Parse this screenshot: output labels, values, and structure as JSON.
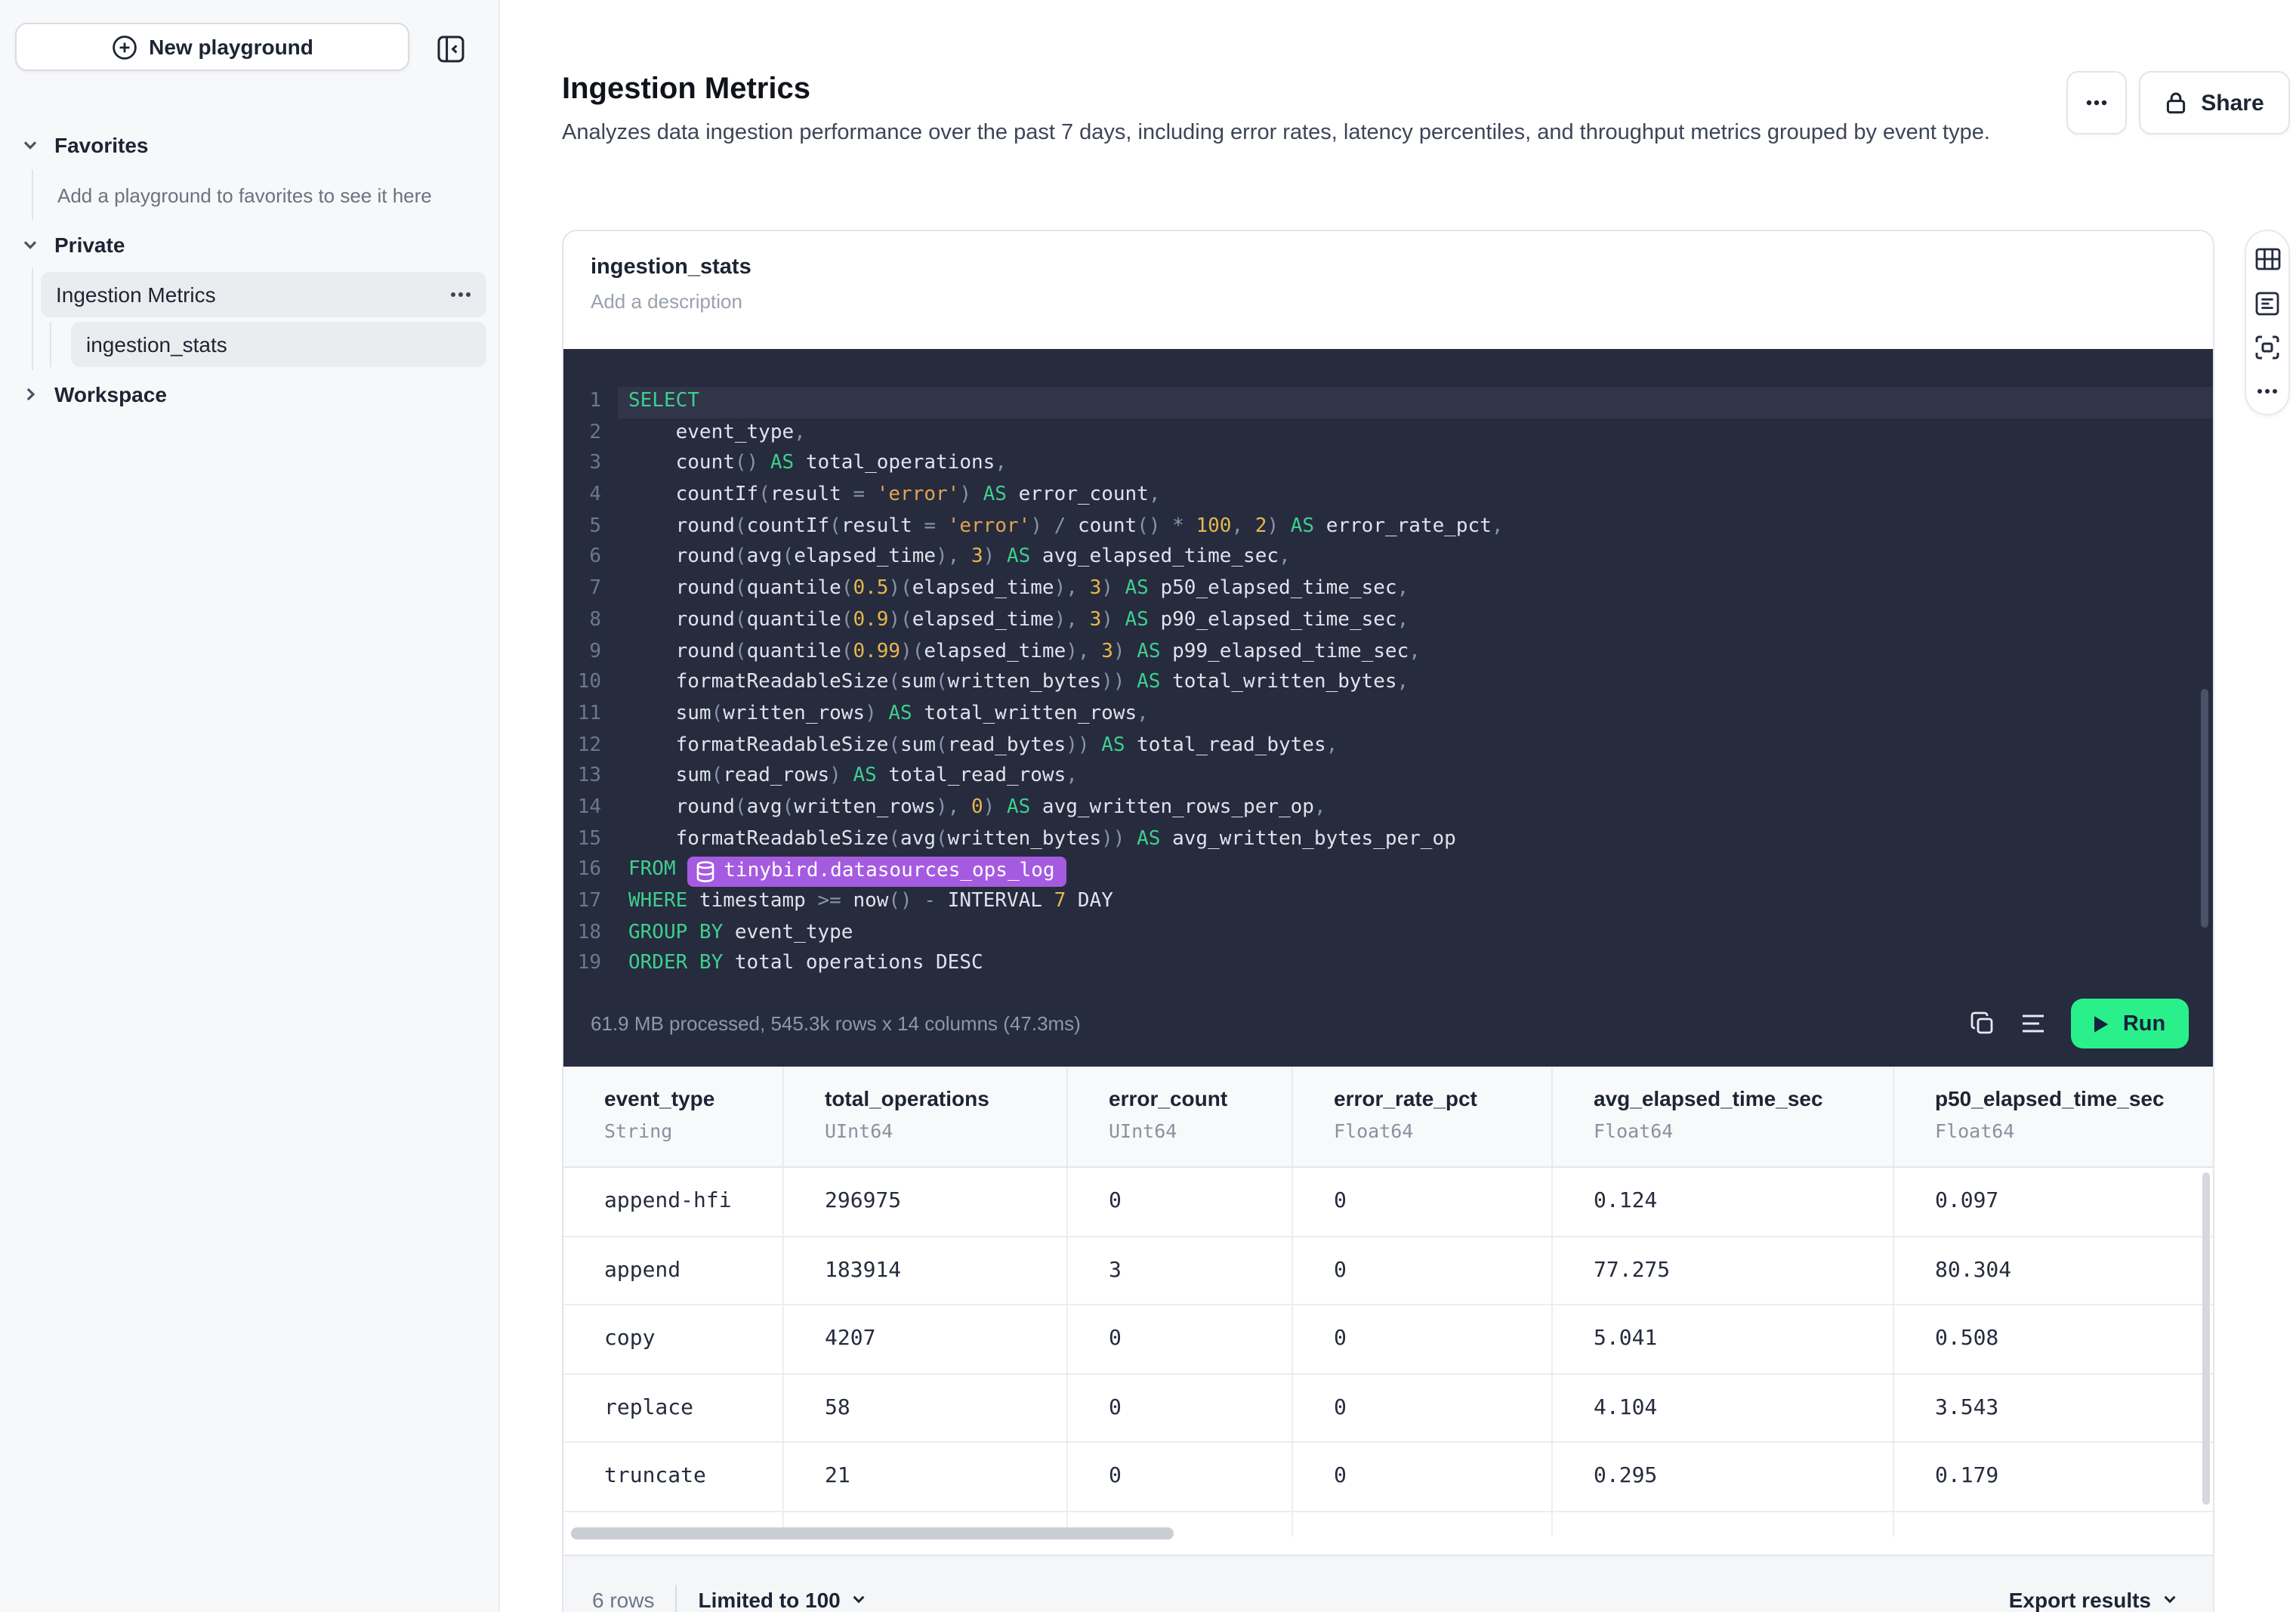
{
  "sidebar": {
    "new_playground": "New playground",
    "sections": {
      "favorites": {
        "label": "Favorites",
        "hint": "Add a playground to favorites to see it here"
      },
      "private": {
        "label": "Private",
        "items": [
          {
            "label": "Ingestion Metrics"
          },
          {
            "label": "ingestion_stats"
          }
        ]
      },
      "workspace": {
        "label": "Workspace"
      }
    }
  },
  "header": {
    "title": "Ingestion Metrics",
    "description": "Analyzes data ingestion performance over the past 7 days, including error rates, latency percentiles, and throughput metrics grouped by event type.",
    "share_label": "Share"
  },
  "panel": {
    "name": "ingestion_stats",
    "description_placeholder": "Add a description",
    "status": "61.9 MB processed, 545.3k rows x 14 columns (47.3ms)",
    "run_label": "Run",
    "table_ref": "tinybird.datasources_ops_log",
    "code_lines": [
      [
        [
          "kw",
          "SELECT"
        ]
      ],
      [
        [
          "id",
          "    event_type"
        ],
        [
          "p",
          ","
        ]
      ],
      [
        [
          "id",
          "    count"
        ],
        [
          "p",
          "() "
        ],
        [
          "kw",
          "AS"
        ],
        [
          "id",
          " total_operations"
        ],
        [
          "p",
          ","
        ]
      ],
      [
        [
          "id",
          "    countIf"
        ],
        [
          "p",
          "("
        ],
        [
          "id",
          "result "
        ],
        [
          "p",
          "= "
        ],
        [
          "str",
          "'error'"
        ],
        [
          "p",
          ") "
        ],
        [
          "kw",
          "AS"
        ],
        [
          "id",
          " error_count"
        ],
        [
          "p",
          ","
        ]
      ],
      [
        [
          "id",
          "    round"
        ],
        [
          "p",
          "("
        ],
        [
          "id",
          "countIf"
        ],
        [
          "p",
          "("
        ],
        [
          "id",
          "result "
        ],
        [
          "p",
          "= "
        ],
        [
          "str",
          "'error'"
        ],
        [
          "p",
          ") / "
        ],
        [
          "id",
          "count"
        ],
        [
          "p",
          "() * "
        ],
        [
          "num",
          "100"
        ],
        [
          "p",
          ", "
        ],
        [
          "num",
          "2"
        ],
        [
          "p",
          ") "
        ],
        [
          "kw",
          "AS"
        ],
        [
          "id",
          " error_rate_pct"
        ],
        [
          "p",
          ","
        ]
      ],
      [
        [
          "id",
          "    round"
        ],
        [
          "p",
          "("
        ],
        [
          "id",
          "avg"
        ],
        [
          "p",
          "("
        ],
        [
          "id",
          "elapsed_time"
        ],
        [
          "p",
          "), "
        ],
        [
          "num",
          "3"
        ],
        [
          "p",
          ") "
        ],
        [
          "kw",
          "AS"
        ],
        [
          "id",
          " avg_elapsed_time_sec"
        ],
        [
          "p",
          ","
        ]
      ],
      [
        [
          "id",
          "    round"
        ],
        [
          "p",
          "("
        ],
        [
          "id",
          "quantile"
        ],
        [
          "p",
          "("
        ],
        [
          "num",
          "0.5"
        ],
        [
          "p",
          ")("
        ],
        [
          "id",
          "elapsed_time"
        ],
        [
          "p",
          "), "
        ],
        [
          "num",
          "3"
        ],
        [
          "p",
          ") "
        ],
        [
          "kw",
          "AS"
        ],
        [
          "id",
          " p50_elapsed_time_sec"
        ],
        [
          "p",
          ","
        ]
      ],
      [
        [
          "id",
          "    round"
        ],
        [
          "p",
          "("
        ],
        [
          "id",
          "quantile"
        ],
        [
          "p",
          "("
        ],
        [
          "num",
          "0.9"
        ],
        [
          "p",
          ")("
        ],
        [
          "id",
          "elapsed_time"
        ],
        [
          "p",
          "), "
        ],
        [
          "num",
          "3"
        ],
        [
          "p",
          ") "
        ],
        [
          "kw",
          "AS"
        ],
        [
          "id",
          " p90_elapsed_time_sec"
        ],
        [
          "p",
          ","
        ]
      ],
      [
        [
          "id",
          "    round"
        ],
        [
          "p",
          "("
        ],
        [
          "id",
          "quantile"
        ],
        [
          "p",
          "("
        ],
        [
          "num",
          "0.99"
        ],
        [
          "p",
          ")("
        ],
        [
          "id",
          "elapsed_time"
        ],
        [
          "p",
          "), "
        ],
        [
          "num",
          "3"
        ],
        [
          "p",
          ") "
        ],
        [
          "kw",
          "AS"
        ],
        [
          "id",
          " p99_elapsed_time_sec"
        ],
        [
          "p",
          ","
        ]
      ],
      [
        [
          "id",
          "    formatReadableSize"
        ],
        [
          "p",
          "("
        ],
        [
          "id",
          "sum"
        ],
        [
          "p",
          "("
        ],
        [
          "id",
          "written_bytes"
        ],
        [
          "p",
          ")) "
        ],
        [
          "kw",
          "AS"
        ],
        [
          "id",
          " total_written_bytes"
        ],
        [
          "p",
          ","
        ]
      ],
      [
        [
          "id",
          "    sum"
        ],
        [
          "p",
          "("
        ],
        [
          "id",
          "written_rows"
        ],
        [
          "p",
          ") "
        ],
        [
          "kw",
          "AS"
        ],
        [
          "id",
          " total_written_rows"
        ],
        [
          "p",
          ","
        ]
      ],
      [
        [
          "id",
          "    formatReadableSize"
        ],
        [
          "p",
          "("
        ],
        [
          "id",
          "sum"
        ],
        [
          "p",
          "("
        ],
        [
          "id",
          "read_bytes"
        ],
        [
          "p",
          ")) "
        ],
        [
          "kw",
          "AS"
        ],
        [
          "id",
          " total_read_bytes"
        ],
        [
          "p",
          ","
        ]
      ],
      [
        [
          "id",
          "    sum"
        ],
        [
          "p",
          "("
        ],
        [
          "id",
          "read_rows"
        ],
        [
          "p",
          ") "
        ],
        [
          "kw",
          "AS"
        ],
        [
          "id",
          " total_read_rows"
        ],
        [
          "p",
          ","
        ]
      ],
      [
        [
          "id",
          "    round"
        ],
        [
          "p",
          "("
        ],
        [
          "id",
          "avg"
        ],
        [
          "p",
          "("
        ],
        [
          "id",
          "written_rows"
        ],
        [
          "p",
          "), "
        ],
        [
          "num",
          "0"
        ],
        [
          "p",
          ") "
        ],
        [
          "kw",
          "AS"
        ],
        [
          "id",
          " avg_written_rows_per_op"
        ],
        [
          "p",
          ","
        ]
      ],
      [
        [
          "id",
          "    formatReadableSize"
        ],
        [
          "p",
          "("
        ],
        [
          "id",
          "avg"
        ],
        [
          "p",
          "("
        ],
        [
          "id",
          "written_bytes"
        ],
        [
          "p",
          ")) "
        ],
        [
          "kw",
          "AS"
        ],
        [
          "id",
          " avg_written_bytes_per_op"
        ]
      ],
      [
        [
          "kw",
          "FROM"
        ],
        [
          "p",
          " "
        ],
        [
          "tbl",
          "tinybird.datasources_ops_log"
        ]
      ],
      [
        [
          "kw",
          "WHERE"
        ],
        [
          "id",
          " timestamp "
        ],
        [
          "p",
          ">= "
        ],
        [
          "id",
          "now"
        ],
        [
          "p",
          "() - "
        ],
        [
          "id",
          "INTERVAL "
        ],
        [
          "num",
          "7"
        ],
        [
          "id",
          " DAY"
        ]
      ],
      [
        [
          "kw",
          "GROUP BY"
        ],
        [
          "id",
          " event_type"
        ]
      ],
      [
        [
          "kw",
          "ORDER BY"
        ],
        [
          "id",
          " total operations DESC"
        ]
      ]
    ]
  },
  "results": {
    "columns": [
      {
        "name": "event_type",
        "type": "String"
      },
      {
        "name": "total_operations",
        "type": "UInt64"
      },
      {
        "name": "error_count",
        "type": "UInt64"
      },
      {
        "name": "error_rate_pct",
        "type": "Float64"
      },
      {
        "name": "avg_elapsed_time_sec",
        "type": "Float64"
      },
      {
        "name": "p50_elapsed_time_sec",
        "type": "Float64"
      }
    ],
    "rows": [
      [
        "append-hfi",
        "296975",
        "0",
        "0",
        "0.124",
        "0.097"
      ],
      [
        "append",
        "183914",
        "3",
        "0",
        "77.275",
        "80.304"
      ],
      [
        "copy",
        "4207",
        "0",
        "0",
        "5.041",
        "0.508"
      ],
      [
        "replace",
        "58",
        "0",
        "0",
        "4.104",
        "3.543"
      ],
      [
        "truncate",
        "21",
        "0",
        "0",
        "0.295",
        "0.179"
      ]
    ],
    "footer": {
      "rows_label": "6 rows",
      "limit_label": "Limited to 100",
      "export_label": "Export results"
    }
  },
  "colors": {
    "run_green": "#2af08c",
    "keyword_green": "#3ecf8e",
    "string_orange": "#dfa452",
    "number_yellow": "#e5b84d",
    "pill_purple": "#a55be0",
    "editor_bg": "#262b3e"
  }
}
